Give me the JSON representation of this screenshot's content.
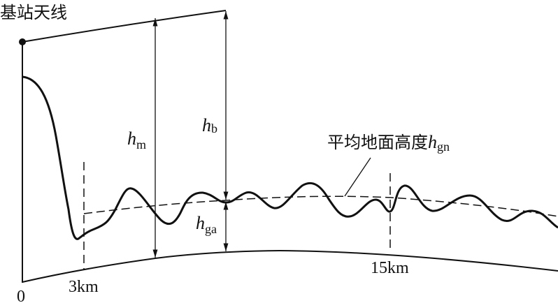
{
  "labels": {
    "antenna": "基站天线",
    "hm": "h",
    "hm_sub": "m",
    "hb": "h",
    "hb_sub": "b",
    "hga": "h",
    "hga_sub": "ga",
    "mean_height": "平均地面高度",
    "mean_h": "h",
    "mean_sub": "gn",
    "origin": "0",
    "km3": "3km",
    "km15": "15km"
  }
}
